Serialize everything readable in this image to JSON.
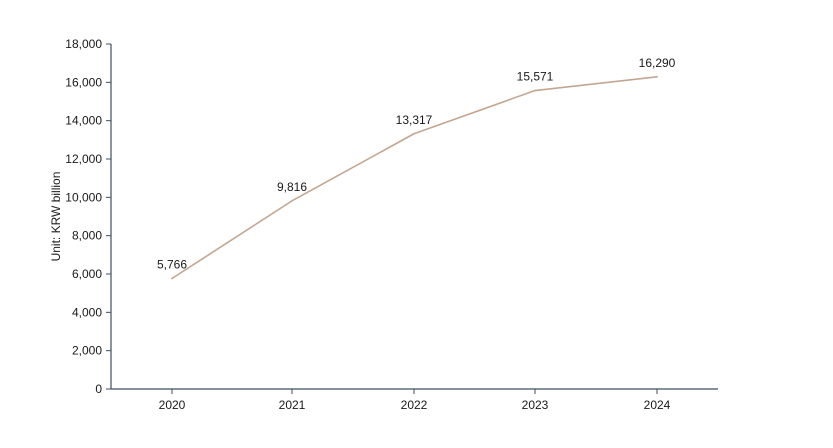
{
  "chart_data": {
    "type": "line",
    "title": "",
    "xlabel": "",
    "ylabel": "Unit: KRW billion",
    "categories": [
      "2020",
      "2021",
      "2022",
      "2023",
      "2024"
    ],
    "series": [
      {
        "values": [
          5766,
          9816,
          13317,
          15571,
          16290
        ],
        "labels": [
          "5,766",
          "9,816",
          "13,317",
          "15,571",
          "16,290"
        ],
        "color": "#c4a690"
      }
    ],
    "ylim": [
      0,
      18000
    ],
    "yticks": [
      0,
      2000,
      4000,
      6000,
      8000,
      10000,
      12000,
      14000,
      16000,
      18000
    ],
    "ytick_labels": [
      "0",
      "2,000",
      "4,000",
      "6,000",
      "8,000",
      "10,000",
      "12,000",
      "14,000",
      "16,000",
      "18,000"
    ],
    "grid": false,
    "legend": "none",
    "axis_color": "#3d4f63"
  }
}
